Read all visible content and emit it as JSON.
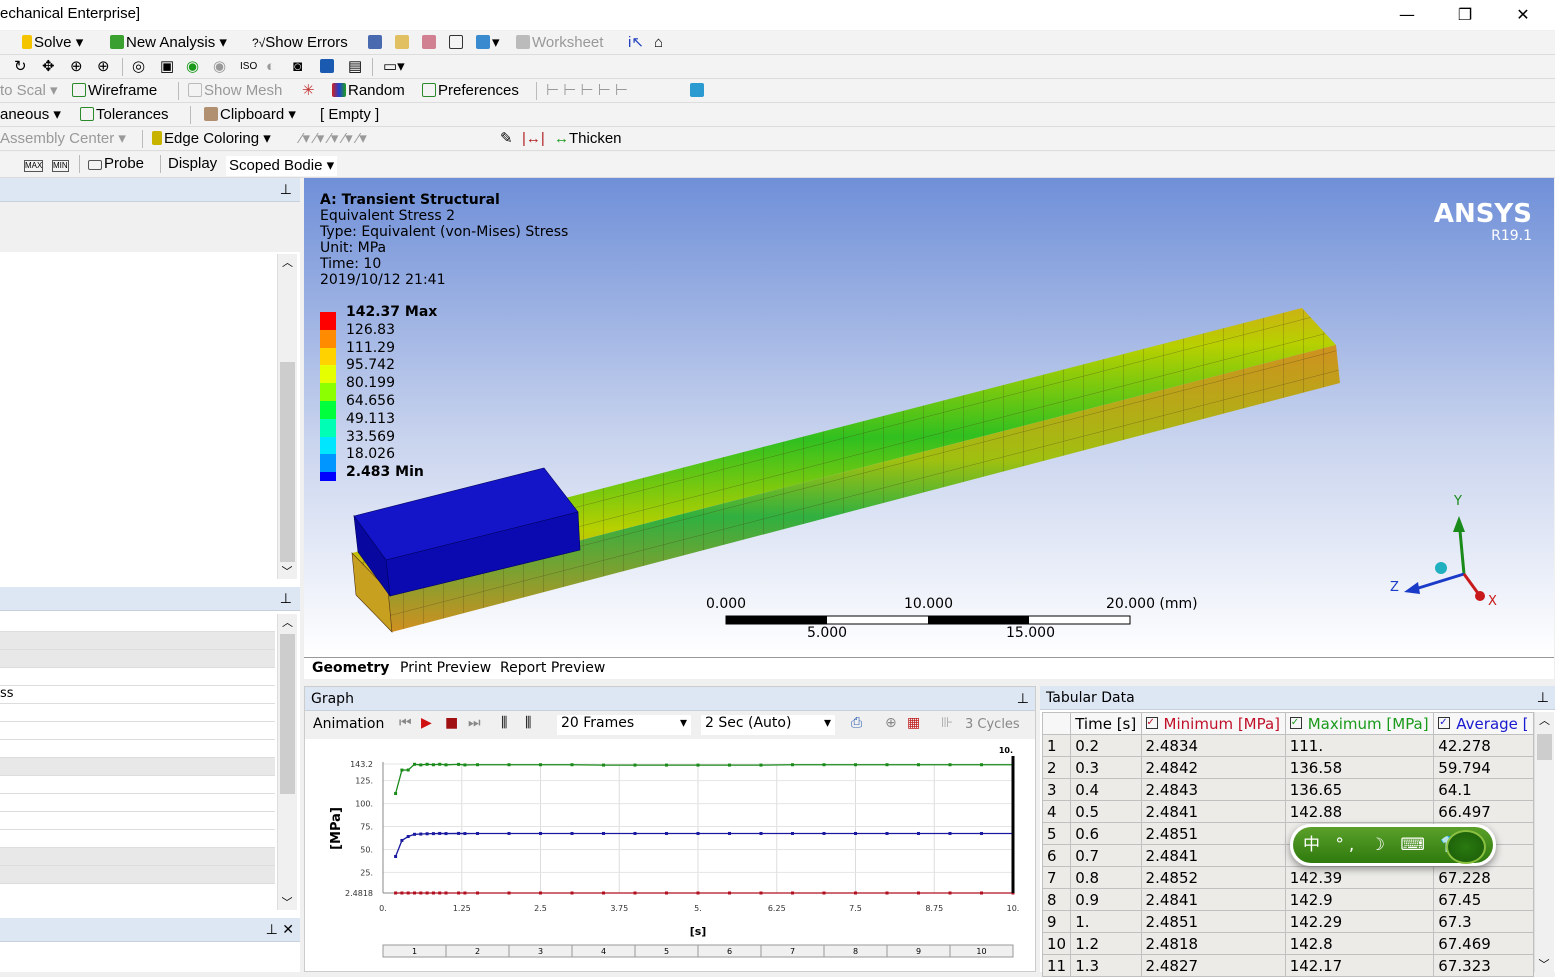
{
  "window": {
    "title": "echanical Enterprise]",
    "minimize": "—",
    "restore": "❐",
    "close": "✕"
  },
  "toolbar1": {
    "solve": "Solve",
    "new_analysis": "New Analysis",
    "show_errors": "Show Errors",
    "show_errors_prefix": "?√",
    "worksheet": "Worksheet"
  },
  "toolbar3": {
    "auto_scale": "to Scal",
    "wireframe": "Wireframe",
    "show_mesh": "Show Mesh",
    "random": "Random",
    "preferences": "Preferences"
  },
  "toolbar4": {
    "miscellaneous": "aneous",
    "tolerances": "Tolerances",
    "clipboard": "Clipboard",
    "clipboard_state": "[ Empty ]"
  },
  "toolbar5": {
    "assembly_center": "Assembly Center",
    "edge_coloring": "Edge Coloring",
    "thicken": "Thicken"
  },
  "toolbar6": {
    "max": "MAX",
    "min": "MIN",
    "probe": "Probe",
    "display": "Display",
    "display_value": "Scoped Bodie"
  },
  "left_panel": {
    "row_text": "ss"
  },
  "viewport": {
    "analysis": "A: Transient Structural",
    "result": "Equivalent Stress 2",
    "type": "Type: Equivalent (von-Mises) Stress",
    "unit": "Unit: MPa",
    "time": "Time: 10",
    "date": "2019/10/12 21:41",
    "brand": "ANSYS",
    "version": "R19.1",
    "legend": [
      {
        "label": "142.37 Max",
        "color": "#ff0000"
      },
      {
        "label": "126.83",
        "color": "#ff8c00"
      },
      {
        "label": "111.29",
        "color": "#ffd200"
      },
      {
        "label": "95.742",
        "color": "#e6ff00"
      },
      {
        "label": "80.199",
        "color": "#8cff00"
      },
      {
        "label": "64.656",
        "color": "#00ff3c"
      },
      {
        "label": "49.113",
        "color": "#00ffb4"
      },
      {
        "label": "33.569",
        "color": "#00e6ff"
      },
      {
        "label": "18.026",
        "color": "#0096ff"
      },
      {
        "label": "2.483 Min",
        "color": "#0000ff"
      }
    ],
    "scale": {
      "top": [
        "0.000",
        "10.000",
        "20.000 (mm)"
      ],
      "bottom": [
        "5.000",
        "15.000"
      ]
    },
    "axes": {
      "x": "X",
      "y": "Y",
      "z": "Z"
    }
  },
  "view_tabs": [
    {
      "label": "Geometry"
    },
    {
      "label": "Print Preview"
    },
    {
      "label": "Report Preview"
    }
  ],
  "graph": {
    "title": "Graph",
    "animation": "Animation",
    "frames": "20 Frames",
    "duration": "2 Sec (Auto)",
    "cycles": "3 Cycles",
    "steps": [
      "1",
      "2",
      "3",
      "4",
      "5",
      "6",
      "7",
      "8",
      "9",
      "10"
    ]
  },
  "chart_data": {
    "type": "line",
    "xlabel": "[s]",
    "ylabel": "[MPa]",
    "xlim": [
      0,
      10
    ],
    "ylim": [
      2.4818,
      143.2
    ],
    "xticks": [
      "0.",
      "1.25",
      "2.5",
      "3.75",
      "5.",
      "6.25",
      "7.5",
      "8.75",
      "10."
    ],
    "yticks": [
      "2.4818",
      "25.",
      "50.",
      "75.",
      "100.",
      "125.",
      "143.2"
    ],
    "cursor_label": "10.",
    "x": [
      0.2,
      0.3,
      0.4,
      0.5,
      0.6,
      0.7,
      0.8,
      0.9,
      1.0,
      1.2,
      1.3,
      1.5,
      2.0,
      2.5,
      3.0,
      3.5,
      4.0,
      4.5,
      5.0,
      5.5,
      6.0,
      6.5,
      7.0,
      7.5,
      8.0,
      8.5,
      9.0,
      9.5,
      10.0
    ],
    "series": [
      {
        "color": "#b01020",
        "values": [
          2.4834,
          2.4842,
          2.4843,
          2.4841,
          2.4851,
          2.4841,
          2.4852,
          2.4841,
          2.4851,
          2.4818,
          2.4827,
          2.483,
          2.483,
          2.483,
          2.483,
          2.483,
          2.483,
          2.483,
          2.483,
          2.483,
          2.483,
          2.483,
          2.483,
          2.483,
          2.483,
          2.483,
          2.483,
          2.483,
          2.483
        ]
      },
      {
        "color": "#1a8a1a",
        "values": [
          111,
          136.58,
          136.65,
          142.88,
          142.2,
          142.9,
          142.39,
          142.9,
          142.29,
          142.8,
          142.17,
          142.4,
          142.4,
          142.4,
          142.4,
          142.0,
          142.0,
          142.0,
          142.0,
          142.0,
          142.0,
          142.4,
          142.4,
          142.4,
          142.4,
          142.4,
          142.4,
          142.4,
          142.37
        ]
      },
      {
        "color": "#1a1aa0",
        "values": [
          42.278,
          59.794,
          64.1,
          66.497,
          66.8,
          67.1,
          67.228,
          67.45,
          67.3,
          67.469,
          67.323,
          67.4,
          67.4,
          67.4,
          67.4,
          67.4,
          67.4,
          67.4,
          67.4,
          67.4,
          67.4,
          67.4,
          67.4,
          67.4,
          67.4,
          67.4,
          67.4,
          67.4,
          67.4
        ]
      }
    ]
  },
  "tabular": {
    "title": "Tabular Data",
    "columns": [
      "",
      "Time [s]",
      "Minimum [MPa]",
      "Maximum [MPa]",
      "Average ["
    ],
    "column_colors": [
      "#000",
      "#000",
      "#c0102a",
      "#1a9a1a",
      "#1a1ad0"
    ],
    "rows": [
      [
        "1",
        "0.2",
        "2.4834",
        "111.",
        "42.278"
      ],
      [
        "2",
        "0.3",
        "2.4842",
        "136.58",
        "59.794"
      ],
      [
        "3",
        "0.4",
        "2.4843",
        "136.65",
        "64.1"
      ],
      [
        "4",
        "0.5",
        "2.4841",
        "142.88",
        "66.497"
      ],
      [
        "5",
        "0.6",
        "2.4851",
        "",
        ""
      ],
      [
        "6",
        "0.7",
        "2.4841",
        "",
        ""
      ],
      [
        "7",
        "0.8",
        "2.4852",
        "142.39",
        "67.228"
      ],
      [
        "8",
        "0.9",
        "2.4841",
        "142.9",
        "67.45"
      ],
      [
        "9",
        "1.",
        "2.4851",
        "142.29",
        "67.3"
      ],
      [
        "10",
        "1.2",
        "2.4818",
        "142.8",
        "67.469"
      ],
      [
        "11",
        "1.3",
        "2.4827",
        "142.17",
        "67.323"
      ]
    ]
  },
  "ime": {
    "text": "中 °, ☽ ⌨ 👕"
  }
}
